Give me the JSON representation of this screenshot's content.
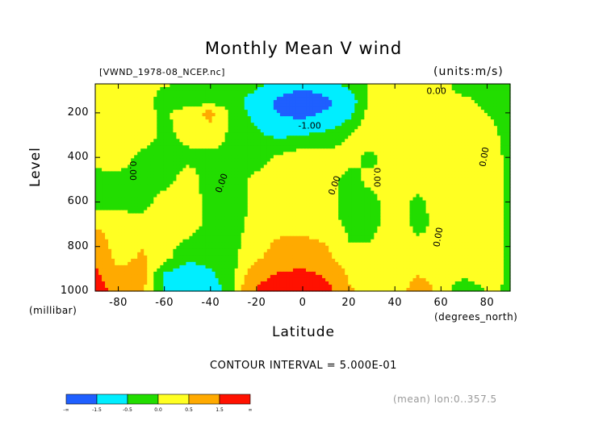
{
  "chart_data": {
    "type": "heatmap",
    "title": "Monthly Mean V wind",
    "file_label": "[VWND_1978-08_NCEP.nc]",
    "units_label": "(units:m/s)",
    "xlabel": "Latitude",
    "xlabel_sub": "(degrees_north)",
    "ylabel": "Level",
    "ylabel_sub": "(millibar)",
    "xlim": [
      -90,
      90
    ],
    "ylim": [
      1000,
      70
    ],
    "x_ticks": [
      "-80",
      "-60",
      "-40",
      "-20",
      "0",
      "20",
      "40",
      "60",
      "80"
    ],
    "x_tick_values": [
      -80,
      -60,
      -40,
      -20,
      0,
      20,
      40,
      60,
      80
    ],
    "y_ticks": [
      "200",
      "400",
      "600",
      "800",
      "1000"
    ],
    "y_tick_values": [
      200,
      400,
      600,
      800,
      1000
    ],
    "contour_interval_text": "CONTOUR INTERVAL = 5.000E-01",
    "mean_text": "(mean) lon:0..357.5",
    "colorbar": {
      "colors": [
        "#1f5fff",
        "#00eeff",
        "#22dd00",
        "#ffff22",
        "#ffaa00",
        "#ff1100"
      ],
      "tick_labels": [
        "-∞",
        "-1.5",
        "-0.5",
        "0.0",
        "0.5",
        "1.5",
        "∞"
      ]
    },
    "contour_labels": [
      "0.00",
      "0.00",
      "0.00",
      "0.00",
      "-1.00",
      "0.00",
      "0.00",
      "0.00"
    ],
    "levels_mb": [
      70,
      100,
      150,
      200,
      300,
      400,
      500,
      600,
      700,
      850,
      925,
      1000
    ],
    "latitudes": [
      -90,
      -80,
      -70,
      -60,
      -50,
      -40,
      -30,
      -20,
      -10,
      0,
      10,
      20,
      30,
      40,
      50,
      60,
      70,
      80,
      90
    ],
    "values": [
      [
        0.1,
        0.2,
        0.3,
        0.1,
        -0.2,
        -0.3,
        -0.2,
        -0.3,
        -0.6,
        -0.8,
        -0.6,
        -0.3,
        0.1,
        0.3,
        0.2,
        0.1,
        -0.1,
        -0.2,
        -0.1
      ],
      [
        0.2,
        0.3,
        0.3,
        -0.1,
        -0.3,
        -0.3,
        -0.2,
        -0.5,
        -1.2,
        -1.6,
        -1.2,
        -0.6,
        0.2,
        0.4,
        0.2,
        0.1,
        -0.1,
        -0.2,
        -0.1
      ],
      [
        0.2,
        0.3,
        0.2,
        -0.2,
        -0.3,
        -0.2,
        -0.3,
        -0.8,
        -1.8,
        -2.2,
        -1.8,
        -0.9,
        0.2,
        0.4,
        0.3,
        0.2,
        0.1,
        -0.1,
        -0.1
      ],
      [
        0.2,
        0.3,
        0.2,
        -0.1,
        0.3,
        0.7,
        -0.2,
        -0.7,
        -1.6,
        -1.9,
        -1.4,
        -0.7,
        0.3,
        0.4,
        0.3,
        0.2,
        0.2,
        0.0,
        -0.1
      ],
      [
        0.2,
        0.3,
        0.2,
        -0.1,
        0.1,
        0.2,
        -0.1,
        -0.4,
        -0.6,
        -0.5,
        -0.3,
        0.0,
        0.3,
        0.3,
        0.2,
        0.3,
        0.2,
        0.1,
        -0.1
      ],
      [
        0.1,
        0.2,
        -0.1,
        -0.2,
        -0.1,
        -0.1,
        -0.1,
        -0.2,
        0.1,
        0.3,
        0.2,
        0.1,
        -0.1,
        0.2,
        0.2,
        0.3,
        0.2,
        0.2,
        -0.1
      ],
      [
        -0.1,
        -0.1,
        -0.2,
        -0.2,
        0.2,
        -0.2,
        -0.2,
        0.1,
        0.2,
        0.3,
        0.1,
        -0.1,
        0.1,
        0.2,
        0.2,
        0.2,
        0.2,
        0.3,
        -0.1
      ],
      [
        -0.3,
        -0.2,
        -0.2,
        0.2,
        0.3,
        -0.2,
        -0.3,
        0.2,
        0.1,
        0.1,
        0.2,
        -0.2,
        -0.1,
        0.2,
        -0.1,
        0.2,
        0.3,
        0.3,
        -0.1
      ],
      [
        0.4,
        0.3,
        0.2,
        0.2,
        0.3,
        -0.2,
        -0.2,
        0.2,
        0.3,
        0.3,
        0.2,
        -0.1,
        -0.1,
        0.2,
        -0.1,
        0.1,
        0.2,
        0.2,
        -0.1
      ],
      [
        1.2,
        0.2,
        0.6,
        0.2,
        -0.4,
        -0.3,
        -0.1,
        0.4,
        0.8,
        0.9,
        0.7,
        0.1,
        0.1,
        0.2,
        0.2,
        0.1,
        0.2,
        0.2,
        -0.1
      ],
      [
        1.7,
        0.8,
        0.8,
        -0.6,
        -0.8,
        -0.6,
        -0.1,
        1.0,
        1.6,
        1.8,
        1.3,
        0.4,
        0.2,
        0.2,
        0.5,
        0.2,
        0.2,
        0.3,
        -0.1
      ],
      [
        2.1,
        1.0,
        0.7,
        -0.6,
        -1.5,
        -0.9,
        -0.1,
        1.6,
        2.6,
        2.7,
        2.0,
        0.6,
        0.2,
        0.2,
        0.8,
        0.4,
        -0.6,
        0.1,
        -0.1
      ]
    ]
  }
}
